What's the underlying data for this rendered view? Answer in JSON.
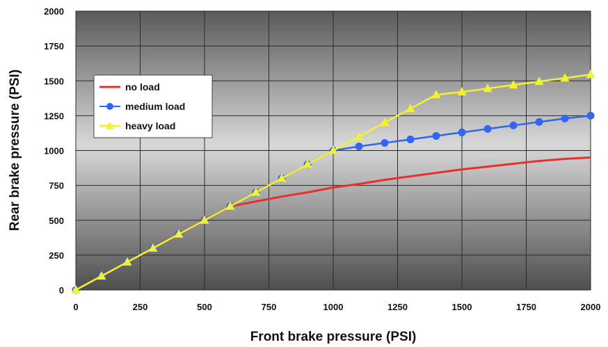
{
  "chart_data": {
    "type": "line",
    "title": "",
    "xlabel": "Front brake pressure (PSI)",
    "ylabel": "Rear brake pressure (PSI)",
    "xlim": [
      0,
      2000
    ],
    "ylim": [
      0,
      2000
    ],
    "x_ticks": [
      "0",
      "250",
      "500",
      "750",
      "1000",
      "1250",
      "1500",
      "1750",
      "2000"
    ],
    "y_ticks": [
      "0",
      "250",
      "500",
      "750",
      "1000",
      "1250",
      "1500",
      "1750",
      "2000"
    ],
    "grid": true,
    "legend_position": "upper-left",
    "series": [
      {
        "name": "no load",
        "color": "#e8302b",
        "marker": "none",
        "x": [
          0,
          100,
          200,
          300,
          400,
          500,
          600,
          700,
          800,
          900,
          1000,
          1100,
          1200,
          1300,
          1400,
          1500,
          1600,
          1700,
          1800,
          1900,
          2000
        ],
        "y": [
          0,
          100,
          200,
          300,
          400,
          500,
          600,
          635,
          670,
          700,
          735,
          760,
          790,
          815,
          840,
          865,
          885,
          905,
          925,
          940,
          950
        ]
      },
      {
        "name": "medium load",
        "color": "#3366ee",
        "marker": "circle",
        "x": [
          0,
          100,
          200,
          300,
          400,
          500,
          600,
          700,
          800,
          900,
          1000,
          1100,
          1200,
          1300,
          1400,
          1500,
          1600,
          1700,
          1800,
          1900,
          2000
        ],
        "y": [
          0,
          100,
          200,
          300,
          400,
          500,
          600,
          700,
          800,
          900,
          1000,
          1030,
          1055,
          1080,
          1105,
          1130,
          1155,
          1180,
          1205,
          1230,
          1250
        ]
      },
      {
        "name": "heavy load",
        "color": "#f2f231",
        "marker": "triangle",
        "x": [
          0,
          100,
          200,
          300,
          400,
          500,
          600,
          700,
          800,
          900,
          1000,
          1100,
          1200,
          1300,
          1400,
          1500,
          1600,
          1700,
          1800,
          1900,
          2000
        ],
        "y": [
          0,
          100,
          200,
          300,
          400,
          500,
          600,
          700,
          800,
          900,
          1000,
          1100,
          1200,
          1300,
          1400,
          1420,
          1445,
          1470,
          1495,
          1520,
          1545
        ]
      }
    ]
  }
}
